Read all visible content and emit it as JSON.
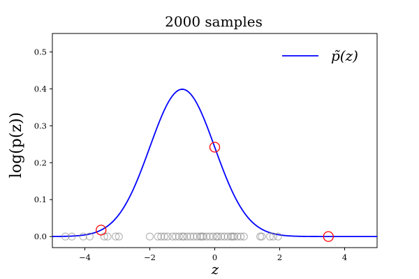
{
  "chart_data": {
    "type": "line",
    "title": "2000 samples",
    "xlabel": "z",
    "ylabel": "log(p(z))",
    "xlim": [
      -5,
      5
    ],
    "ylim": [
      -0.03,
      0.55
    ],
    "xticks": [
      -4,
      -2,
      0,
      2,
      4
    ],
    "xtick_labels": [
      "−4",
      "−2",
      "0",
      "2",
      "4"
    ],
    "yticks": [
      0.0,
      0.1,
      0.2,
      0.3,
      0.4,
      0.5
    ],
    "ytick_labels": [
      "0.0",
      "0.1",
      "0.2",
      "0.3",
      "0.4",
      "0.5"
    ],
    "grid": false,
    "legend_position": "top-right",
    "series": [
      {
        "name": "p̃(z)",
        "kind": "curve",
        "color": "#0000ff",
        "distribution": {
          "family": "normal",
          "mean": -1,
          "std": 1
        },
        "x": [
          -5,
          -4.5,
          -4,
          -3.5,
          -3,
          -2.5,
          -2,
          -1.5,
          -1,
          -0.5,
          0,
          0.5,
          1,
          1.5,
          2,
          2.5,
          3,
          3.5,
          4,
          4.5,
          5
        ],
        "y": [
          0.0001,
          0.0009,
          0.0044,
          0.0175,
          0.054,
          0.1295,
          0.242,
          0.3521,
          0.3989,
          0.3521,
          0.242,
          0.1295,
          0.054,
          0.0175,
          0.0044,
          0.0009,
          0.0001,
          0.0,
          0.0,
          0.0,
          0.0
        ]
      }
    ],
    "highlighted_points": {
      "color": "#ff0000",
      "x": [
        -3.5,
        0,
        3.5
      ],
      "y": [
        0.0175,
        0.242,
        0.0
      ]
    },
    "sample_points": {
      "color": "#808080",
      "y": 0.0,
      "x": [
        -4.6,
        -4.4,
        -4.05,
        -3.85,
        -3.4,
        -3.3,
        -3.05,
        -2.95,
        -2.0,
        -1.75,
        -1.65,
        -1.55,
        -1.45,
        -1.3,
        -1.2,
        -1.1,
        -1.0,
        -0.95,
        -0.85,
        -0.75,
        -0.65,
        -0.55,
        -0.45,
        -0.4,
        -0.35,
        -0.25,
        -0.15,
        -0.05,
        0.05,
        0.1,
        0.2,
        0.3,
        0.4,
        0.5,
        0.55,
        0.6,
        0.7,
        0.8,
        0.9,
        1.4,
        1.45,
        1.7,
        1.8,
        1.95
      ]
    }
  }
}
